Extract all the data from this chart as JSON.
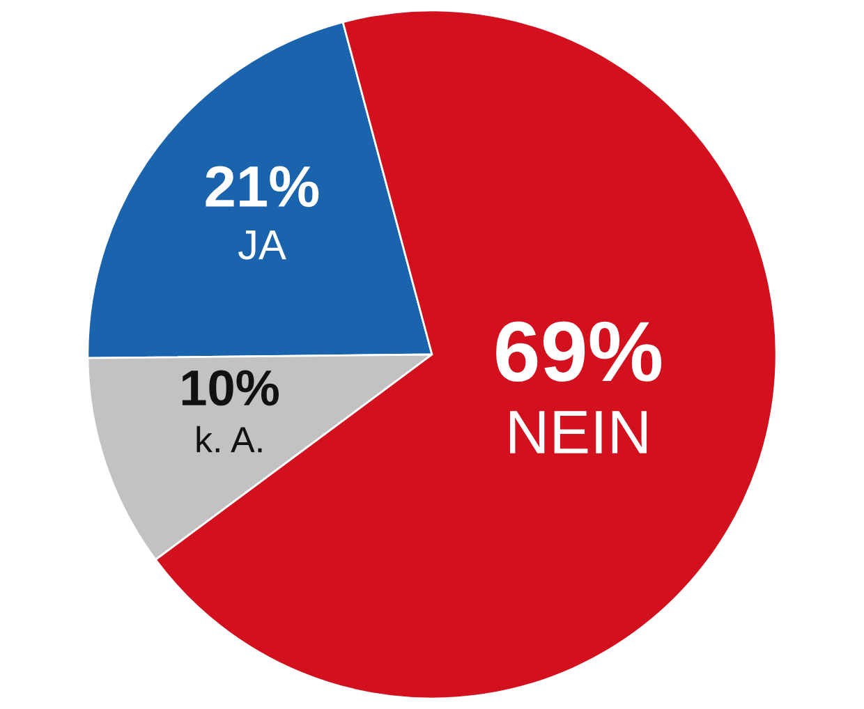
{
  "chart_data": {
    "type": "pie",
    "categories": [
      "JA",
      "k. A.",
      "NEIN"
    ],
    "values": [
      21,
      10,
      69
    ],
    "value_labels": [
      "21%",
      "10%",
      "69%"
    ],
    "colors": [
      "#1a63ad",
      "#c2c2c2",
      "#d3101e"
    ]
  }
}
